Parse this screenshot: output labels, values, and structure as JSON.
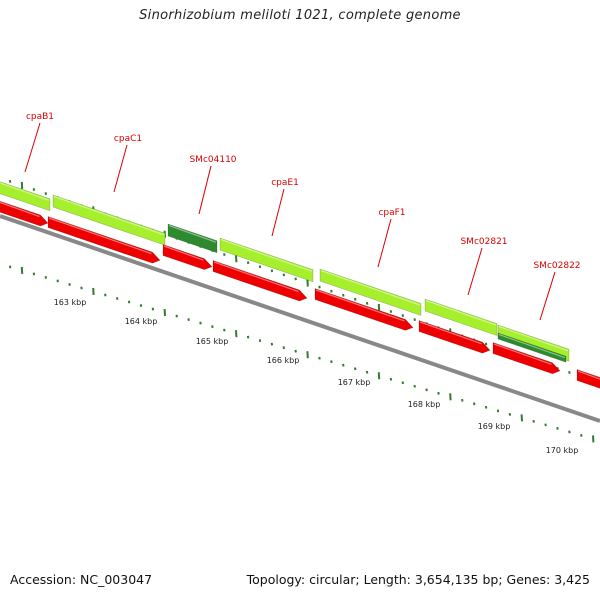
{
  "title": "Sinorhizobium meliloti 1021, complete genome",
  "footer": {
    "accession": "Accession: NC_003047",
    "stats": "Topology: circular; Length: 3,654,135 bp; Genes: 3,425"
  },
  "gene_labels": [
    "cpaB1",
    "cpaC1",
    "SMc04110",
    "cpaE1",
    "cpaF1",
    "SMc02821",
    "SMc02822"
  ],
  "scale_labels": [
    "163 kbp",
    "164 kbp",
    "165 kbp",
    "166 kbp",
    "167 kbp",
    "168 kbp",
    "169 kbp",
    "170 kbp"
  ],
  "colors": {
    "light_green": "#a6ef2c",
    "dark_green": "#2e8a2e",
    "red": "#ee0000",
    "gray": "#888888",
    "label_red": "#dd0000",
    "tick_green": "#2e7d2e"
  }
}
